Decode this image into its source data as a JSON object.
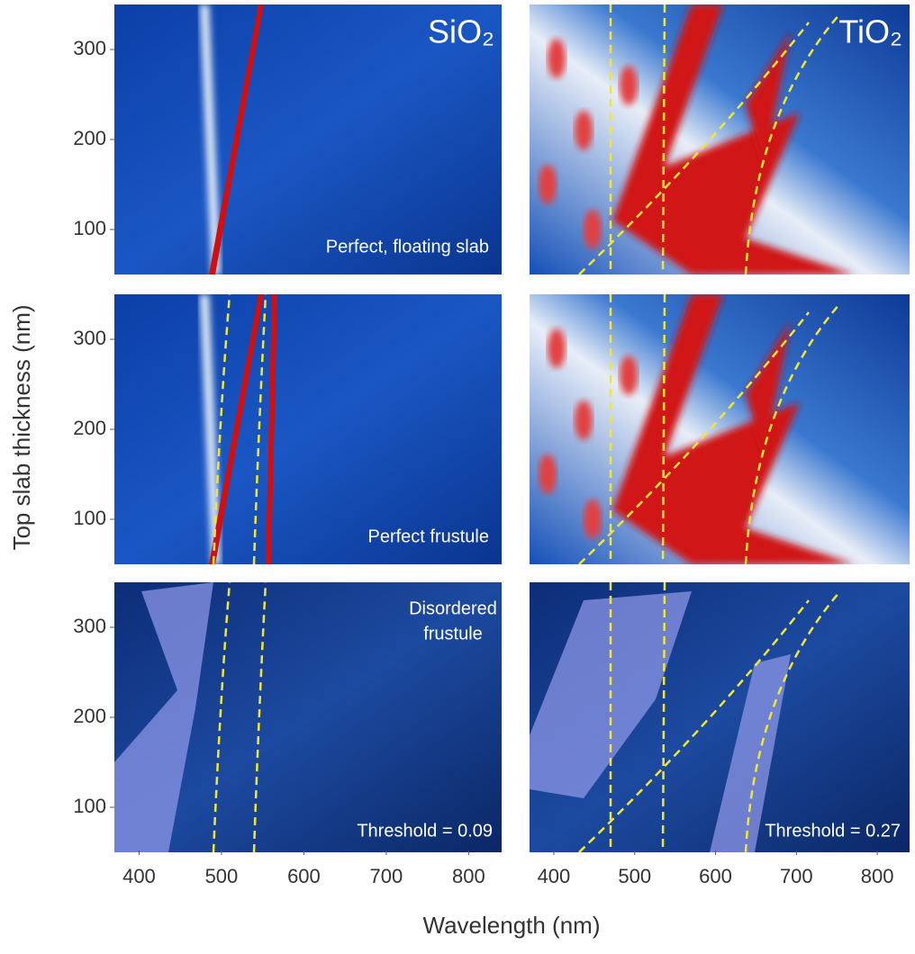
{
  "chart_data": {
    "type": "heatmap",
    "xlabel": "Wavelength (nm)",
    "ylabel": "Top slab thickness (nm)",
    "xlim": [
      370,
      840
    ],
    "xticks": [
      400,
      500,
      600,
      700,
      800
    ],
    "ylim": [
      50,
      350
    ],
    "yticks": [
      100,
      200,
      300
    ],
    "columns": [
      {
        "material": "SiO₂"
      },
      {
        "material": "TiO₂"
      }
    ],
    "rows": [
      {
        "label": [
          "Perfect, floating slab"
        ]
      },
      {
        "label": [
          "Perfect frustule"
        ]
      },
      {
        "label": [
          "Disordered",
          "frustule"
        ],
        "thresholds": [
          "Threshold = 0.09",
          "Threshold = 0.27"
        ]
      }
    ]
  }
}
